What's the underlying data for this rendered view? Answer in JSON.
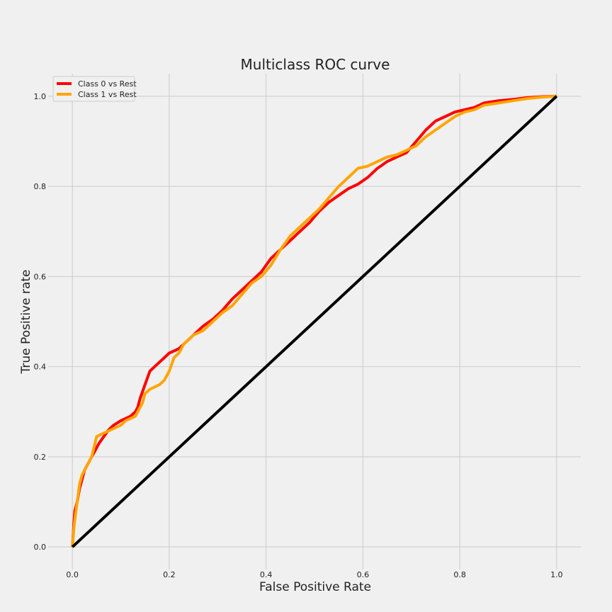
{
  "chart_data": {
    "type": "line",
    "title": "Multiclass ROC curve",
    "xlabel": "False Positive Rate",
    "ylabel": "True Positive rate",
    "xlim": [
      -0.05,
      1.05
    ],
    "ylim": [
      -0.05,
      1.05
    ],
    "xticks": [
      0.0,
      0.2,
      0.4,
      0.6,
      0.8,
      1.0
    ],
    "yticks": [
      0.0,
      0.2,
      0.4,
      0.6,
      0.8,
      1.0
    ],
    "xtick_labels": [
      "0.0",
      "0.2",
      "0.4",
      "0.6",
      "0.8",
      "1.0"
    ],
    "ytick_labels": [
      "0.0",
      "0.2",
      "0.4",
      "0.6",
      "0.8",
      "1.0"
    ],
    "grid": true,
    "legend_position": "top-left",
    "background": "#f0f0f0",
    "series": [
      {
        "name": "Class 0 vs Rest",
        "color": "#ff0000",
        "x": [
          0.0,
          0.003,
          0.005,
          0.01,
          0.015,
          0.02,
          0.025,
          0.03,
          0.04,
          0.05,
          0.055,
          0.065,
          0.075,
          0.085,
          0.1,
          0.11,
          0.12,
          0.13,
          0.135,
          0.14,
          0.15,
          0.16,
          0.17,
          0.18,
          0.19,
          0.2,
          0.21,
          0.22,
          0.23,
          0.24,
          0.25,
          0.27,
          0.29,
          0.31,
          0.33,
          0.35,
          0.37,
          0.39,
          0.41,
          0.43,
          0.45,
          0.47,
          0.49,
          0.51,
          0.53,
          0.55,
          0.57,
          0.59,
          0.61,
          0.63,
          0.65,
          0.67,
          0.69,
          0.71,
          0.73,
          0.75,
          0.77,
          0.79,
          0.81,
          0.83,
          0.85,
          0.88,
          0.91,
          0.94,
          0.97,
          1.0
        ],
        "y": [
          0.0,
          0.05,
          0.08,
          0.1,
          0.13,
          0.15,
          0.17,
          0.18,
          0.2,
          0.22,
          0.23,
          0.245,
          0.26,
          0.27,
          0.28,
          0.285,
          0.29,
          0.3,
          0.31,
          0.33,
          0.36,
          0.39,
          0.4,
          0.41,
          0.42,
          0.43,
          0.435,
          0.44,
          0.45,
          0.46,
          0.47,
          0.49,
          0.505,
          0.525,
          0.55,
          0.57,
          0.59,
          0.61,
          0.64,
          0.66,
          0.68,
          0.7,
          0.72,
          0.745,
          0.765,
          0.78,
          0.795,
          0.805,
          0.82,
          0.84,
          0.855,
          0.865,
          0.875,
          0.9,
          0.925,
          0.945,
          0.955,
          0.965,
          0.97,
          0.975,
          0.985,
          0.99,
          0.993,
          0.997,
          0.999,
          1.0
        ]
      },
      {
        "name": "Class 1 vs Rest",
        "color": "#ffa500",
        "x": [
          0.0,
          0.003,
          0.005,
          0.01,
          0.015,
          0.02,
          0.03,
          0.04,
          0.05,
          0.06,
          0.07,
          0.08,
          0.09,
          0.1,
          0.11,
          0.12,
          0.13,
          0.14,
          0.145,
          0.15,
          0.16,
          0.17,
          0.18,
          0.19,
          0.2,
          0.21,
          0.22,
          0.23,
          0.24,
          0.25,
          0.27,
          0.29,
          0.31,
          0.33,
          0.35,
          0.37,
          0.39,
          0.41,
          0.43,
          0.45,
          0.47,
          0.49,
          0.51,
          0.53,
          0.55,
          0.57,
          0.59,
          0.61,
          0.63,
          0.65,
          0.67,
          0.69,
          0.71,
          0.73,
          0.75,
          0.77,
          0.79,
          0.81,
          0.83,
          0.85,
          0.88,
          0.91,
          0.94,
          0.97,
          1.0
        ],
        "y": [
          0.0,
          0.04,
          0.06,
          0.1,
          0.14,
          0.16,
          0.18,
          0.2,
          0.245,
          0.25,
          0.255,
          0.26,
          0.265,
          0.27,
          0.28,
          0.285,
          0.29,
          0.31,
          0.32,
          0.34,
          0.35,
          0.355,
          0.36,
          0.37,
          0.39,
          0.42,
          0.43,
          0.45,
          0.46,
          0.47,
          0.48,
          0.5,
          0.52,
          0.535,
          0.56,
          0.585,
          0.6,
          0.625,
          0.66,
          0.69,
          0.71,
          0.73,
          0.75,
          0.775,
          0.8,
          0.82,
          0.84,
          0.845,
          0.855,
          0.865,
          0.87,
          0.88,
          0.89,
          0.91,
          0.925,
          0.94,
          0.955,
          0.965,
          0.97,
          0.98,
          0.985,
          0.99,
          0.995,
          0.998,
          1.0
        ]
      },
      {
        "name": "",
        "color": "#000000",
        "x": [
          0.0,
          1.0
        ],
        "y": [
          0.0,
          1.0
        ]
      }
    ]
  }
}
